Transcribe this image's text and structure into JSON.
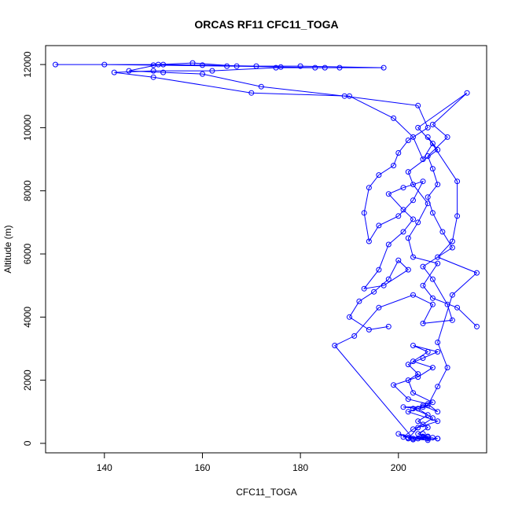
{
  "chart_data": {
    "type": "scatter",
    "title": "ORCAS RF11 CFC11_TOGA",
    "xlabel": "CFC11_TOGA",
    "ylabel": "Altitude (m)",
    "xlim": [
      128,
      218
    ],
    "ylim": [
      -300,
      12600
    ],
    "xticks": [
      140,
      160,
      180,
      200
    ],
    "yticks": [
      0,
      2000,
      4000,
      6000,
      8000,
      10000,
      12000
    ],
    "grid": false,
    "color": "#0000ff",
    "series": [
      {
        "connected": true,
        "points": [
          [
            208,
            150
          ],
          [
            205,
            200
          ],
          [
            202,
            180
          ],
          [
            206,
            220
          ],
          [
            204,
            300
          ],
          [
            206,
            500
          ],
          [
            204,
            700
          ],
          [
            206,
            900
          ],
          [
            203,
            1100
          ],
          [
            205,
            1200
          ],
          [
            208,
            1000
          ],
          [
            206,
            1250
          ],
          [
            202,
            1400
          ],
          [
            199,
            1850
          ],
          [
            204,
            2100
          ],
          [
            207,
            2400
          ],
          [
            203,
            2600
          ],
          [
            206,
            2900
          ],
          [
            203,
            3100
          ],
          [
            208,
            2900
          ],
          [
            205,
            2700
          ],
          [
            202,
            2500
          ],
          [
            204,
            2200
          ],
          [
            202,
            2000
          ],
          [
            203,
            1600
          ],
          [
            207,
            1300
          ],
          [
            205,
            1150
          ],
          [
            201,
            1150
          ],
          [
            204,
            1100
          ],
          [
            207,
            800
          ],
          [
            205,
            600
          ],
          [
            203,
            450
          ],
          [
            201,
            200
          ],
          [
            206,
            150
          ],
          [
            207,
            180
          ],
          [
            203,
            120
          ],
          [
            200,
            300
          ],
          [
            204,
            150
          ],
          [
            206,
            200
          ],
          [
            205,
            300
          ],
          [
            203,
            150
          ],
          [
            187,
            3100
          ],
          [
            191,
            3400
          ],
          [
            196,
            4300
          ],
          [
            203,
            4700
          ],
          [
            207,
            4400
          ],
          [
            205,
            3800
          ],
          [
            211,
            3900
          ],
          [
            210,
            4400
          ],
          [
            207,
            5200
          ],
          [
            205,
            5600
          ],
          [
            211,
            6200
          ],
          [
            209,
            6700
          ],
          [
            207,
            7300
          ],
          [
            206,
            7800
          ],
          [
            208,
            8200
          ],
          [
            207,
            8700
          ],
          [
            206,
            9100
          ],
          [
            210,
            9700
          ],
          [
            207,
            10100
          ],
          [
            214,
            11100
          ],
          [
            204,
            10000
          ],
          [
            207,
            9500
          ],
          [
            205,
            9000
          ],
          [
            203,
            9700
          ],
          [
            199,
            10300
          ],
          [
            190,
            11000
          ],
          [
            170,
            11100
          ],
          [
            150,
            11600
          ],
          [
            142,
            11750
          ],
          [
            150,
            11800
          ],
          [
            162,
            11800
          ],
          [
            175,
            11900
          ],
          [
            183,
            11900
          ],
          [
            188,
            11900
          ],
          [
            197,
            11900
          ],
          [
            180,
            11950
          ],
          [
            165,
            11950
          ],
          [
            150,
            11980
          ],
          [
            140,
            12000
          ],
          [
            130,
            12000
          ],
          [
            152,
            12000
          ],
          [
            160,
            11980
          ],
          [
            171,
            11950
          ]
        ]
      },
      {
        "connected": true,
        "points": [
          [
            198,
            3700
          ],
          [
            194,
            3600
          ],
          [
            190,
            4000
          ],
          [
            192,
            4500
          ],
          [
            195,
            4800
          ],
          [
            198,
            5200
          ],
          [
            200,
            5800
          ],
          [
            202,
            5500
          ],
          [
            197,
            5000
          ],
          [
            193,
            4900
          ],
          [
            196,
            5500
          ],
          [
            198,
            6300
          ],
          [
            201,
            6700
          ],
          [
            203,
            7100
          ],
          [
            201,
            7400
          ],
          [
            198,
            7900
          ],
          [
            201,
            8100
          ],
          [
            205,
            8300
          ],
          [
            203,
            7700
          ],
          [
            200,
            7200
          ],
          [
            196,
            6900
          ],
          [
            194,
            6400
          ],
          [
            193,
            7300
          ],
          [
            194,
            8100
          ],
          [
            196,
            8500
          ],
          [
            199,
            8800
          ],
          [
            200,
            9200
          ],
          [
            202,
            9600
          ],
          [
            206,
            10000
          ],
          [
            204,
            10700
          ],
          [
            189,
            11000
          ],
          [
            172,
            11300
          ],
          [
            160,
            11700
          ],
          [
            152,
            11750
          ],
          [
            145,
            11800
          ],
          [
            151,
            12000
          ],
          [
            158,
            12050
          ],
          [
            167,
            11950
          ],
          [
            176,
            11920
          ],
          [
            185,
            11900
          ]
        ]
      },
      {
        "connected": true,
        "points": [
          [
            216,
            3700
          ],
          [
            212,
            4300
          ],
          [
            207,
            4600
          ],
          [
            205,
            5000
          ],
          [
            208,
            5700
          ],
          [
            203,
            5900
          ],
          [
            202,
            6500
          ],
          [
            204,
            7000
          ],
          [
            206,
            7600
          ],
          [
            203,
            8200
          ],
          [
            202,
            8600
          ],
          [
            208,
            9300
          ],
          [
            206,
            9700
          ],
          [
            212,
            8300
          ],
          [
            212,
            7200
          ],
          [
            211,
            6400
          ],
          [
            208,
            5900
          ],
          [
            216,
            5400
          ],
          [
            211,
            4700
          ],
          [
            208,
            3200
          ],
          [
            210,
            2400
          ],
          [
            208,
            1800
          ],
          [
            206,
            1200
          ],
          [
            202,
            1000
          ],
          [
            208,
            700
          ],
          [
            204,
            500
          ],
          [
            202,
            150
          ],
          [
            206,
            100
          ],
          [
            208,
            150
          ]
        ]
      }
    ]
  }
}
